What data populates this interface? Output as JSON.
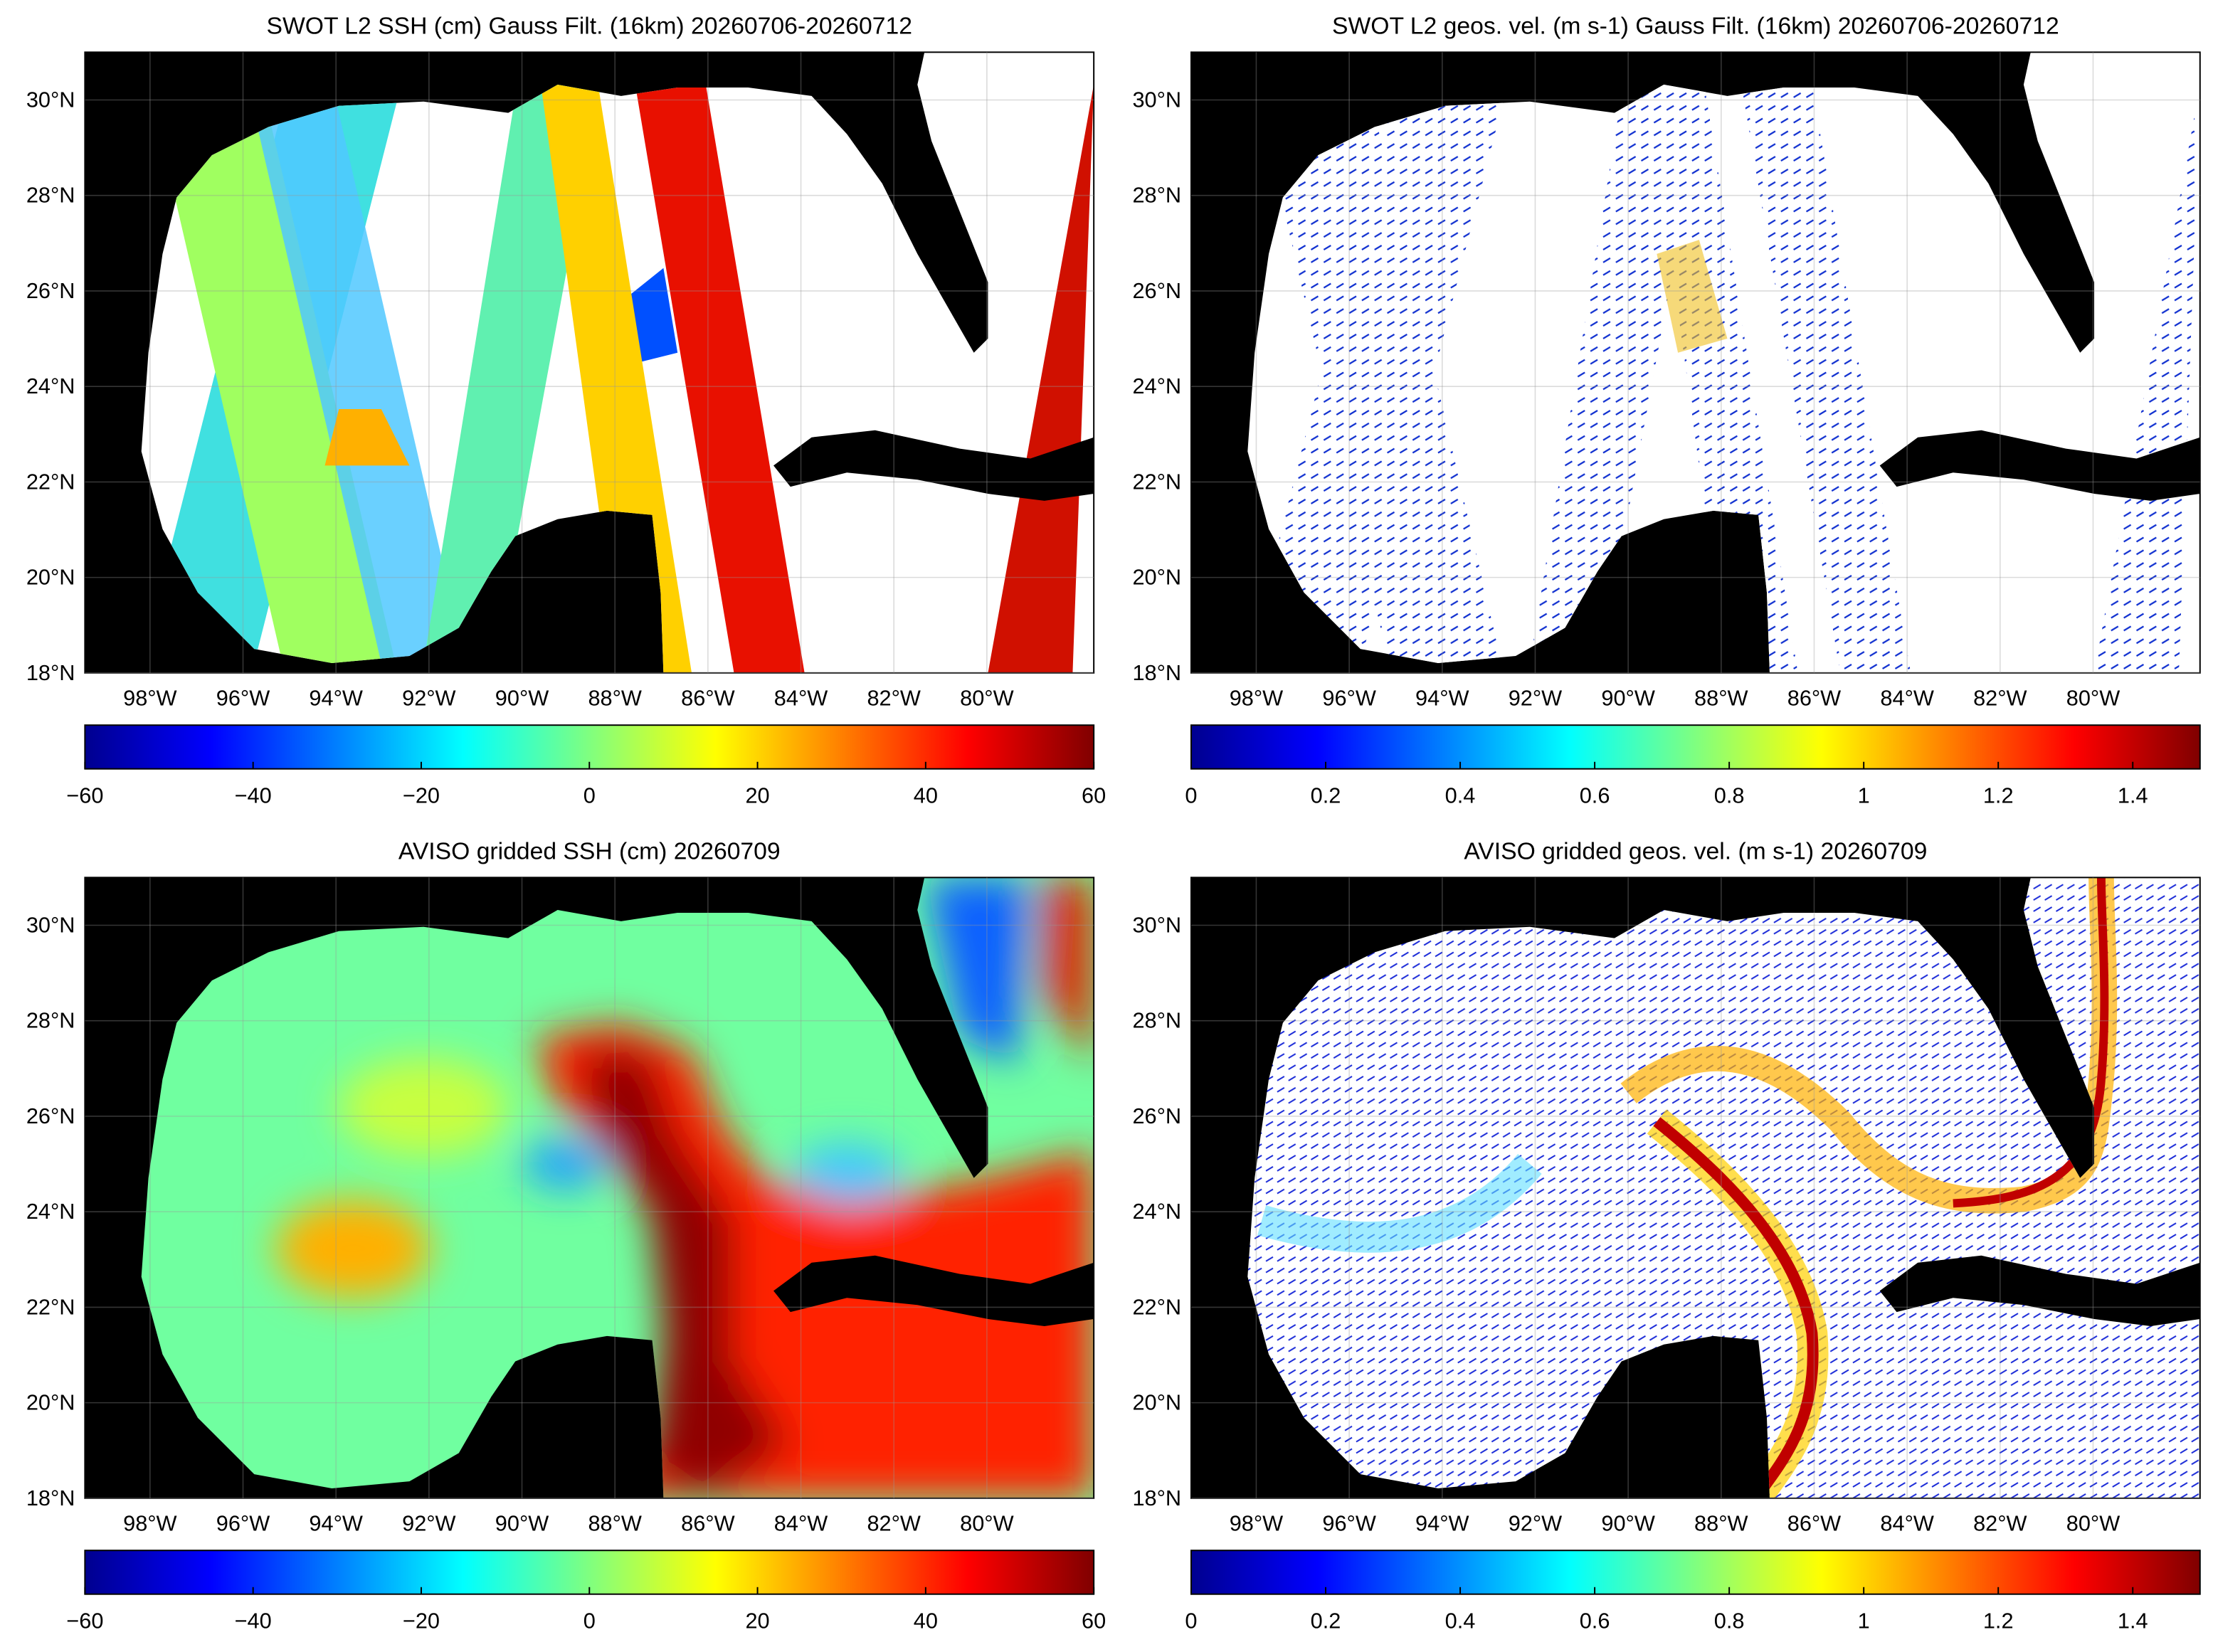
{
  "panels": [
    {
      "title": "SWOT L2 SSH (cm) Gauss Filt. (16km) 20260706-20260712",
      "xlim": [
        -99.4,
        -77.7
      ],
      "ylim": [
        18,
        31
      ],
      "xticks": [
        {
          "value": -98,
          "label": "98°W"
        },
        {
          "value": -96,
          "label": "96°W"
        },
        {
          "value": -94,
          "label": "94°W"
        },
        {
          "value": -92,
          "label": "92°W"
        },
        {
          "value": -90,
          "label": "90°W"
        },
        {
          "value": -88,
          "label": "88°W"
        },
        {
          "value": -86,
          "label": "86°W"
        },
        {
          "value": -84,
          "label": "84°W"
        },
        {
          "value": -82,
          "label": "82°W"
        },
        {
          "value": -80,
          "label": "80°W"
        }
      ],
      "yticks": [
        {
          "value": 18,
          "label": "18°N"
        },
        {
          "value": 20,
          "label": "20°N"
        },
        {
          "value": 22,
          "label": "22°N"
        },
        {
          "value": 24,
          "label": "24°N"
        },
        {
          "value": 26,
          "label": "26°N"
        },
        {
          "value": 28,
          "label": "28°N"
        },
        {
          "value": 30,
          "label": "30°N"
        }
      ],
      "colorbar": {
        "lim": [
          -60,
          60
        ],
        "ticks": [
          {
            "value": -60,
            "label": "−60"
          },
          {
            "value": -40,
            "label": "−40"
          },
          {
            "value": -20,
            "label": "−20"
          },
          0,
          20,
          40,
          60
        ]
      }
    },
    {
      "title": "SWOT L2 geos. vel. (m s-1) Gauss Filt. (16km) 20260706-20260712",
      "xlim": [
        -99.4,
        -77.7
      ],
      "ylim": [
        18,
        31
      ],
      "xticks": [
        {
          "value": -98,
          "label": "98°W"
        },
        {
          "value": -96,
          "label": "96°W"
        },
        {
          "value": -94,
          "label": "94°W"
        },
        {
          "value": -92,
          "label": "92°W"
        },
        {
          "value": -90,
          "label": "90°W"
        },
        {
          "value": -88,
          "label": "88°W"
        },
        {
          "value": -86,
          "label": "86°W"
        },
        {
          "value": -84,
          "label": "84°W"
        },
        {
          "value": -82,
          "label": "82°W"
        },
        {
          "value": -80,
          "label": "80°W"
        }
      ],
      "yticks": [
        {
          "value": 18,
          "label": "18°N"
        },
        {
          "value": 20,
          "label": "20°N"
        },
        {
          "value": 22,
          "label": "22°N"
        },
        {
          "value": 24,
          "label": "24°N"
        },
        {
          "value": 26,
          "label": "26°N"
        },
        {
          "value": 28,
          "label": "28°N"
        },
        {
          "value": 30,
          "label": "30°N"
        }
      ],
      "colorbar": {
        "lim": [
          0,
          1.5
        ],
        "ticks": [
          0,
          0.2,
          0.4,
          0.6,
          0.8,
          1,
          1.2,
          1.4
        ]
      }
    },
    {
      "title": "AVISO gridded SSH (cm) 20260709",
      "xlim": [
        -99.4,
        -77.7
      ],
      "ylim": [
        18,
        31
      ],
      "xticks": [
        {
          "value": -98,
          "label": "98°W"
        },
        {
          "value": -96,
          "label": "96°W"
        },
        {
          "value": -94,
          "label": "94°W"
        },
        {
          "value": -92,
          "label": "92°W"
        },
        {
          "value": -90,
          "label": "90°W"
        },
        {
          "value": -88,
          "label": "88°W"
        },
        {
          "value": -86,
          "label": "86°W"
        },
        {
          "value": -84,
          "label": "84°W"
        },
        {
          "value": -82,
          "label": "82°W"
        },
        {
          "value": -80,
          "label": "80°W"
        }
      ],
      "yticks": [
        {
          "value": 18,
          "label": "18°N"
        },
        {
          "value": 20,
          "label": "20°N"
        },
        {
          "value": 22,
          "label": "22°N"
        },
        {
          "value": 24,
          "label": "24°N"
        },
        {
          "value": 26,
          "label": "26°N"
        },
        {
          "value": 28,
          "label": "28°N"
        },
        {
          "value": 30,
          "label": "30°N"
        }
      ],
      "colorbar": {
        "lim": [
          -60,
          60
        ],
        "ticks": [
          {
            "value": -60,
            "label": "−60"
          },
          {
            "value": -40,
            "label": "−40"
          },
          {
            "value": -20,
            "label": "−20"
          },
          0,
          20,
          40,
          60
        ]
      }
    },
    {
      "title": "AVISO gridded geos. vel. (m s-1)  20260709",
      "xlim": [
        -99.4,
        -77.7
      ],
      "ylim": [
        18,
        31
      ],
      "xticks": [
        {
          "value": -98,
          "label": "98°W"
        },
        {
          "value": -96,
          "label": "96°W"
        },
        {
          "value": -94,
          "label": "94°W"
        },
        {
          "value": -92,
          "label": "92°W"
        },
        {
          "value": -90,
          "label": "90°W"
        },
        {
          "value": -88,
          "label": "88°W"
        },
        {
          "value": -86,
          "label": "86°W"
        },
        {
          "value": -84,
          "label": "84°W"
        },
        {
          "value": -82,
          "label": "82°W"
        },
        {
          "value": -80,
          "label": "80°W"
        }
      ],
      "yticks": [
        {
          "value": 18,
          "label": "18°N"
        },
        {
          "value": 20,
          "label": "20°N"
        },
        {
          "value": 22,
          "label": "22°N"
        },
        {
          "value": 24,
          "label": "24°N"
        },
        {
          "value": 26,
          "label": "26°N"
        },
        {
          "value": 28,
          "label": "28°N"
        },
        {
          "value": 30,
          "label": "30°N"
        }
      ],
      "colorbar": {
        "lim": [
          0,
          1.5
        ],
        "ticks": [
          0,
          0.2,
          0.4,
          0.6,
          0.8,
          1,
          1.2,
          1.4
        ]
      }
    }
  ]
}
